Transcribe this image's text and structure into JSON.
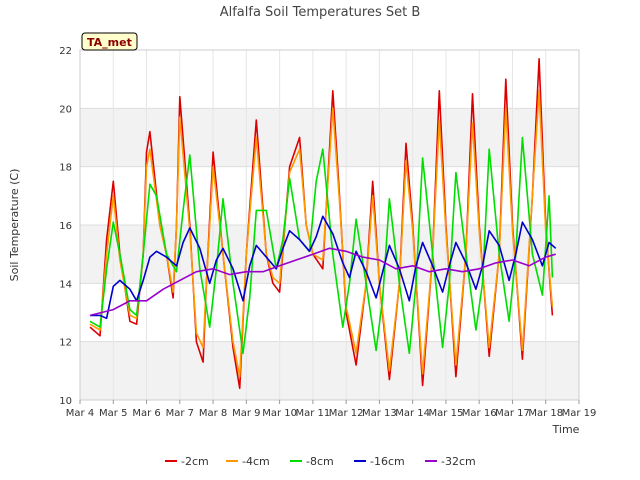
{
  "chart_data": {
    "type": "line",
    "title": "Alfalfa Soil Temperatures Set B",
    "xlabel": "Time",
    "ylabel": "Soil Temperature (C)",
    "badge": "TA_met",
    "ylim": [
      10,
      22
    ],
    "yticks": [
      10,
      12,
      14,
      16,
      18,
      20,
      22
    ],
    "xlim": [
      0,
      15
    ],
    "xticks": [
      {
        "x": 0,
        "label": "Mar 4"
      },
      {
        "x": 1,
        "label": "Mar 5"
      },
      {
        "x": 2,
        "label": "Mar 6"
      },
      {
        "x": 3,
        "label": "Mar 7"
      },
      {
        "x": 4,
        "label": "Mar 8"
      },
      {
        "x": 5,
        "label": "Mar 9"
      },
      {
        "x": 6,
        "label": "Mar 10"
      },
      {
        "x": 7,
        "label": "Mar 11"
      },
      {
        "x": 8,
        "label": "Mar 12"
      },
      {
        "x": 9,
        "label": "Mar 13"
      },
      {
        "x": 10,
        "label": "Mar 14"
      },
      {
        "x": 11,
        "label": "Mar 15"
      },
      {
        "x": 12,
        "label": "Mar 16"
      },
      {
        "x": 13,
        "label": "Mar 17"
      },
      {
        "x": 14,
        "label": "Mar 18"
      },
      {
        "x": 15,
        "label": "Mar 19"
      }
    ],
    "grid": true,
    "legend_position": "bottom",
    "x_units": "days since Mar 4",
    "series": [
      {
        "name": "-2cm",
        "color": "#dd0000",
        "x": [
          0.3,
          0.6,
          0.8,
          1.0,
          1.2,
          1.5,
          1.7,
          1.9,
          2.0,
          2.1,
          2.4,
          2.6,
          2.8,
          2.9,
          3.0,
          3.3,
          3.5,
          3.7,
          3.8,
          4.0,
          4.3,
          4.6,
          4.8,
          5.0,
          5.3,
          5.6,
          5.8,
          6.0,
          6.3,
          6.6,
          6.8,
          7.0,
          7.3,
          7.6,
          7.8,
          8.0,
          8.3,
          8.6,
          8.8,
          9.0,
          9.3,
          9.6,
          9.8,
          10.0,
          10.3,
          10.6,
          10.8,
          11.0,
          11.3,
          11.6,
          11.8,
          12.0,
          12.3,
          12.6,
          12.8,
          13.0,
          13.3,
          13.6,
          13.8,
          14.0,
          14.2
        ],
        "y": [
          12.5,
          12.2,
          15.5,
          17.5,
          15.0,
          12.7,
          12.6,
          15.0,
          18.5,
          19.2,
          16.0,
          15.0,
          13.5,
          16.0,
          20.4,
          16.0,
          12.0,
          11.3,
          14.0,
          18.5,
          15.0,
          11.8,
          10.4,
          15.0,
          19.6,
          15.0,
          14.0,
          13.7,
          18.0,
          19.0,
          16.0,
          15.0,
          14.5,
          20.6,
          17.0,
          13.0,
          11.2,
          14.0,
          17.5,
          14.0,
          10.7,
          14.0,
          18.8,
          16.0,
          10.5,
          15.0,
          20.6,
          16.0,
          10.8,
          15.0,
          20.5,
          16.0,
          11.5,
          15.0,
          21.0,
          16.0,
          11.4,
          17.0,
          21.7,
          16.0,
          12.9
        ]
      },
      {
        "name": "-4cm",
        "color": "#ff9900",
        "x": [
          0.3,
          0.6,
          0.8,
          1.0,
          1.2,
          1.5,
          1.7,
          1.9,
          2.0,
          2.1,
          2.4,
          2.6,
          2.8,
          2.9,
          3.0,
          3.3,
          3.5,
          3.7,
          3.8,
          4.0,
          4.3,
          4.6,
          4.8,
          5.0,
          5.3,
          5.6,
          5.8,
          6.0,
          6.3,
          6.6,
          6.8,
          7.0,
          7.3,
          7.6,
          7.8,
          8.0,
          8.3,
          8.6,
          8.8,
          9.0,
          9.3,
          9.6,
          9.8,
          10.0,
          10.3,
          10.6,
          10.8,
          11.0,
          11.3,
          11.6,
          11.8,
          12.0,
          12.3,
          12.6,
          12.8,
          13.0,
          13.3,
          13.6,
          13.8,
          14.0,
          14.2
        ],
        "y": [
          12.6,
          12.4,
          15.0,
          17.0,
          14.8,
          12.9,
          12.8,
          15.0,
          18.0,
          18.6,
          16.0,
          15.0,
          13.7,
          16.0,
          19.7,
          15.8,
          12.3,
          11.8,
          14.0,
          18.0,
          15.0,
          12.0,
          10.8,
          15.0,
          19.0,
          15.0,
          14.2,
          14.0,
          17.8,
          18.6,
          16.0,
          15.0,
          14.8,
          20.0,
          16.8,
          13.2,
          11.6,
          14.0,
          17.0,
          14.0,
          11.0,
          14.0,
          18.2,
          15.8,
          10.9,
          15.0,
          19.6,
          15.8,
          11.2,
          15.0,
          19.5,
          15.8,
          11.8,
          15.0,
          20.0,
          15.8,
          11.7,
          17.0,
          20.6,
          15.8,
          13.2
        ]
      },
      {
        "name": "-8cm",
        "color": "#00dd00",
        "x": [
          0.3,
          0.6,
          0.8,
          1.0,
          1.2,
          1.5,
          1.7,
          1.9,
          2.1,
          2.3,
          2.6,
          2.9,
          3.1,
          3.3,
          3.6,
          3.9,
          4.1,
          4.3,
          4.6,
          4.9,
          5.1,
          5.3,
          5.6,
          5.9,
          6.1,
          6.3,
          6.6,
          6.9,
          7.1,
          7.3,
          7.6,
          7.9,
          8.1,
          8.3,
          8.6,
          8.9,
          9.1,
          9.3,
          9.6,
          9.9,
          10.1,
          10.3,
          10.6,
          10.9,
          11.1,
          11.3,
          11.6,
          11.9,
          12.1,
          12.3,
          12.6,
          12.9,
          13.1,
          13.3,
          13.6,
          13.9,
          14.1,
          14.2
        ],
        "y": [
          12.7,
          12.5,
          14.5,
          16.1,
          15.0,
          13.1,
          12.9,
          15.0,
          17.4,
          17.0,
          15.0,
          14.4,
          16.5,
          18.4,
          14.5,
          12.5,
          14.5,
          16.9,
          14.0,
          11.6,
          13.5,
          16.5,
          16.5,
          14.5,
          15.5,
          17.6,
          15.5,
          15.1,
          17.5,
          18.6,
          15.0,
          12.5,
          14.0,
          16.2,
          14.0,
          11.7,
          13.5,
          16.9,
          14.0,
          11.6,
          14.0,
          18.3,
          15.0,
          11.8,
          14.0,
          17.8,
          15.0,
          12.4,
          14.0,
          18.6,
          15.0,
          12.7,
          15.0,
          19.0,
          15.0,
          13.6,
          17.0,
          14.2
        ]
      },
      {
        "name": "-16cm",
        "color": "#0000cc",
        "x": [
          0.3,
          0.6,
          0.8,
          1.0,
          1.2,
          1.5,
          1.7,
          1.9,
          2.1,
          2.3,
          2.6,
          2.9,
          3.1,
          3.3,
          3.6,
          3.9,
          4.1,
          4.3,
          4.6,
          4.9,
          5.1,
          5.3,
          5.6,
          5.9,
          6.1,
          6.3,
          6.6,
          6.9,
          7.1,
          7.3,
          7.6,
          7.9,
          8.1,
          8.3,
          8.6,
          8.9,
          9.1,
          9.3,
          9.6,
          9.9,
          10.1,
          10.3,
          10.6,
          10.9,
          11.1,
          11.3,
          11.6,
          11.9,
          12.1,
          12.3,
          12.6,
          12.9,
          13.1,
          13.3,
          13.6,
          13.9,
          14.1,
          14.3
        ],
        "y": [
          12.9,
          12.9,
          12.8,
          13.9,
          14.1,
          13.8,
          13.4,
          14.1,
          14.9,
          15.1,
          14.9,
          14.6,
          15.4,
          15.9,
          15.2,
          14.0,
          14.8,
          15.2,
          14.5,
          13.4,
          14.6,
          15.3,
          14.9,
          14.5,
          15.2,
          15.8,
          15.5,
          15.1,
          15.6,
          16.3,
          15.7,
          14.7,
          14.2,
          15.1,
          14.4,
          13.5,
          14.4,
          15.3,
          14.5,
          13.4,
          14.6,
          15.4,
          14.6,
          13.7,
          14.6,
          15.4,
          14.7,
          13.8,
          14.6,
          15.8,
          15.3,
          14.1,
          15.0,
          16.1,
          15.5,
          14.6,
          15.4,
          15.2
        ]
      },
      {
        "name": "-32cm",
        "color": "#9900cc",
        "x": [
          0.3,
          1.0,
          1.5,
          2.0,
          2.5,
          3.0,
          3.5,
          4.0,
          4.5,
          5.0,
          5.5,
          6.0,
          6.5,
          7.0,
          7.5,
          8.0,
          8.5,
          9.0,
          9.5,
          10.0,
          10.5,
          11.0,
          11.5,
          12.0,
          12.5,
          13.0,
          13.5,
          14.0,
          14.3
        ],
        "y": [
          12.9,
          13.1,
          13.4,
          13.4,
          13.8,
          14.1,
          14.4,
          14.5,
          14.3,
          14.4,
          14.4,
          14.6,
          14.8,
          15.0,
          15.2,
          15.1,
          14.9,
          14.8,
          14.5,
          14.6,
          14.4,
          14.5,
          14.4,
          14.5,
          14.7,
          14.8,
          14.6,
          14.9,
          15.0
        ]
      }
    ]
  }
}
